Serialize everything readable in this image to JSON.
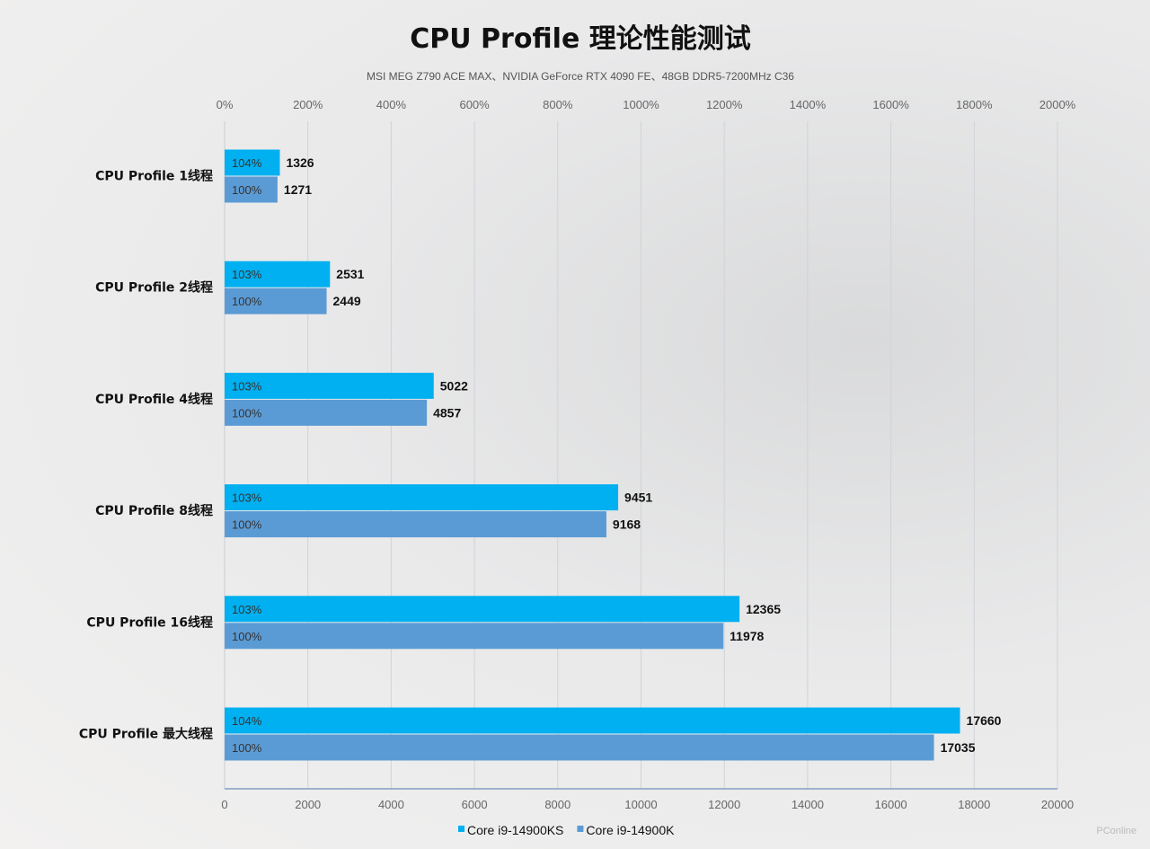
{
  "chart_data": {
    "type": "bar",
    "orientation": "horizontal",
    "title": "CPU Profile 理论性能测试",
    "subtitle": "MSI MEG Z790 ACE MAX、NVIDIA  GeForce RTX 4090 FE、48GB DDR5-7200MHz  C36",
    "categories": [
      "CPU Profile 1线程",
      "CPU Profile 2线程",
      "CPU Profile 4线程",
      "CPU Profile 8线程",
      "CPU Profile 16线程",
      "CPU Profile 最大线程"
    ],
    "series": [
      {
        "name": "Core i9-14900KS",
        "color": "#00b0f0",
        "values": [
          1326,
          2531,
          5022,
          9451,
          12365,
          17660
        ],
        "labels": [
          "104%",
          "103%",
          "103%",
          "103%",
          "103%",
          "104%"
        ]
      },
      {
        "name": "Core i9-14900K",
        "color": "#5b9bd5",
        "values": [
          1271,
          2449,
          4857,
          9168,
          11978,
          17035
        ],
        "labels": [
          "100%",
          "100%",
          "100%",
          "100%",
          "100%",
          "100%"
        ]
      }
    ],
    "xlim": [
      0,
      20000
    ],
    "x_ticks": [
      "0",
      "2000",
      "4000",
      "6000",
      "8000",
      "10000",
      "12000",
      "14000",
      "16000",
      "18000",
      "20000"
    ],
    "x2_ticks": [
      "0%",
      "200%",
      "400%",
      "600%",
      "800%",
      "1000%",
      "1200%",
      "1400%",
      "1600%",
      "1800%",
      "2000%"
    ],
    "grid": true,
    "legend": "bottom"
  },
  "watermark": "PConline"
}
